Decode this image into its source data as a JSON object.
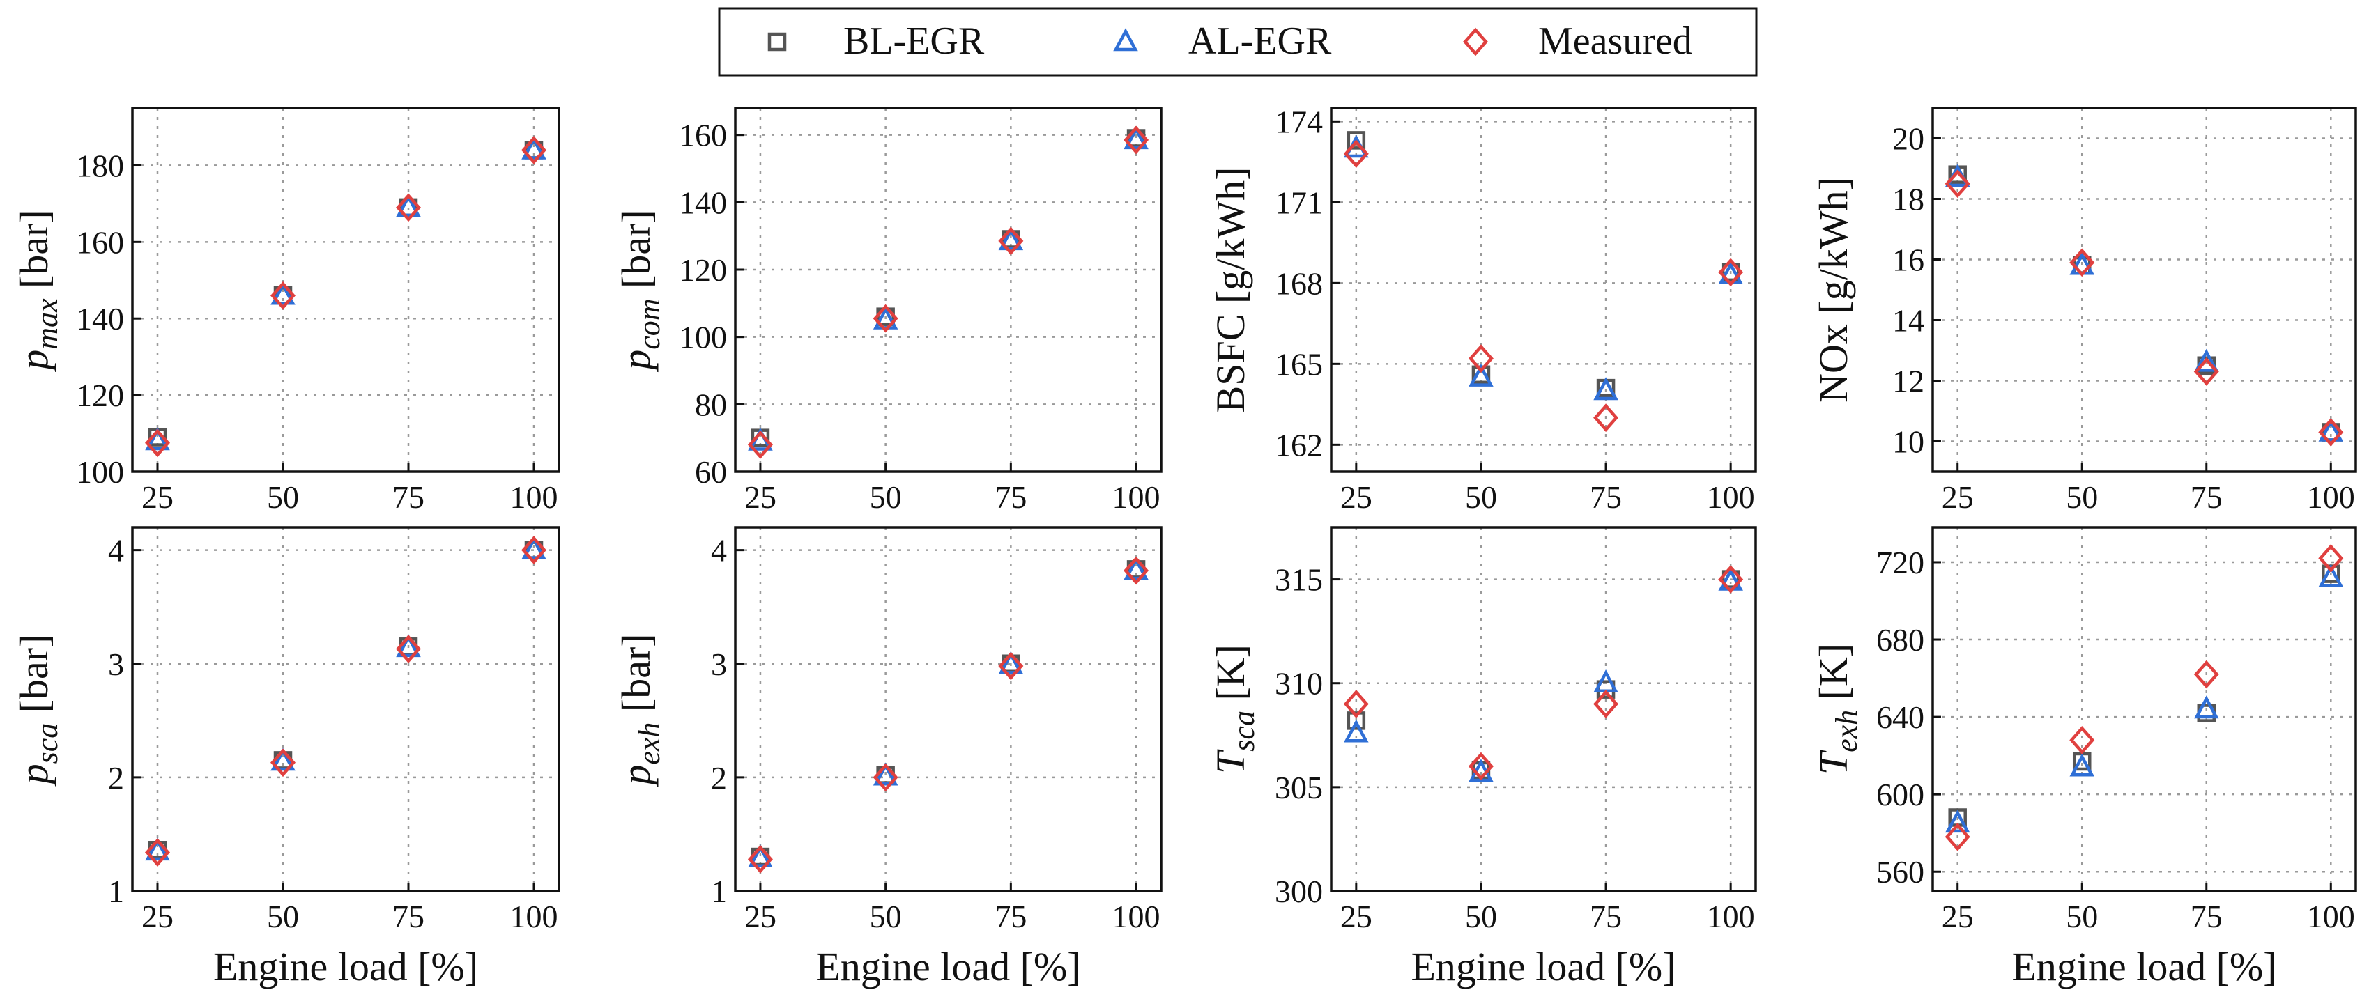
{
  "legend": [
    {
      "name": "BL-EGR",
      "marker": "square",
      "color": "#555555"
    },
    {
      "name": "AL-EGR",
      "marker": "triangle",
      "color": "#2f6fd6"
    },
    {
      "name": "Measured",
      "marker": "diamond",
      "color": "#e0403f"
    }
  ],
  "chart_data": [
    {
      "id": "pmax",
      "type": "scatter",
      "title": "",
      "ylabel_main": "p",
      "ylabel_sub": "max",
      "ylabel_unit": " [bar]",
      "xlabel": "",
      "x": [
        25,
        50,
        75,
        100
      ],
      "ylim": [
        100,
        195
      ],
      "yticks": [
        100,
        120,
        140,
        160,
        180
      ],
      "series": [
        {
          "name": "BL-EGR",
          "values": [
            109,
            146,
            169,
            184
          ]
        },
        {
          "name": "AL-EGR",
          "values": [
            108,
            146,
            169,
            184
          ]
        },
        {
          "name": "Measured",
          "values": [
            107.5,
            146,
            169,
            184
          ]
        }
      ]
    },
    {
      "id": "pcom",
      "type": "scatter",
      "title": "",
      "ylabel_main": "p",
      "ylabel_sub": "com",
      "ylabel_unit": " [bar]",
      "xlabel": "",
      "x": [
        25,
        50,
        75,
        100
      ],
      "ylim": [
        60,
        168
      ],
      "yticks": [
        60,
        80,
        100,
        120,
        140,
        160
      ],
      "series": [
        {
          "name": "BL-EGR",
          "values": [
            70,
            106,
            129,
            159
          ]
        },
        {
          "name": "AL-EGR",
          "values": [
            69,
            105,
            128.5,
            158.5
          ]
        },
        {
          "name": "Measured",
          "values": [
            68,
            105.5,
            128.5,
            158.5
          ]
        }
      ]
    },
    {
      "id": "bsfc",
      "type": "scatter",
      "title": "",
      "ylabel_main": "BSFC [g/kWh]",
      "ylabel_sub": "",
      "ylabel_unit": "",
      "xlabel": "",
      "x": [
        25,
        50,
        75,
        100
      ],
      "ylim": [
        161,
        174.5
      ],
      "yticks": [
        162,
        165,
        168,
        171,
        174
      ],
      "series": [
        {
          "name": "BL-EGR",
          "values": [
            173.3,
            164.6,
            164.1,
            168.4
          ]
        },
        {
          "name": "AL-EGR",
          "values": [
            173.0,
            164.5,
            164.0,
            168.3
          ]
        },
        {
          "name": "Measured",
          "values": [
            172.8,
            165.2,
            163.0,
            168.4
          ]
        }
      ]
    },
    {
      "id": "nox",
      "type": "scatter",
      "title": "",
      "ylabel_main": "NOx [g/kWh]",
      "ylabel_sub": "",
      "ylabel_unit": "",
      "xlabel": "",
      "x": [
        25,
        50,
        75,
        100
      ],
      "ylim": [
        9,
        21
      ],
      "yticks": [
        10,
        12,
        14,
        16,
        18,
        20
      ],
      "series": [
        {
          "name": "BL-EGR",
          "values": [
            18.8,
            15.8,
            12.5,
            10.3
          ]
        },
        {
          "name": "AL-EGR",
          "values": [
            18.7,
            15.8,
            12.6,
            10.3
          ]
        },
        {
          "name": "Measured",
          "values": [
            18.5,
            15.9,
            12.3,
            10.3
          ]
        }
      ]
    },
    {
      "id": "psca",
      "type": "scatter",
      "title": "",
      "ylabel_main": "p",
      "ylabel_sub": "sca",
      "ylabel_unit": " [bar]",
      "xlabel": "Engine load [%]",
      "x": [
        25,
        50,
        75,
        100
      ],
      "ylim": [
        1,
        4.2
      ],
      "yticks": [
        1,
        2,
        3,
        4
      ],
      "series": [
        {
          "name": "BL-EGR",
          "values": [
            1.36,
            2.15,
            3.15,
            4.0
          ]
        },
        {
          "name": "AL-EGR",
          "values": [
            1.35,
            2.14,
            3.14,
            4.0
          ]
        },
        {
          "name": "Measured",
          "values": [
            1.34,
            2.13,
            3.13,
            4.0
          ]
        }
      ]
    },
    {
      "id": "pexh",
      "type": "scatter",
      "title": "",
      "ylabel_main": "p",
      "ylabel_sub": "exh",
      "ylabel_unit": " [bar]",
      "xlabel": "Engine load [%]",
      "x": [
        25,
        50,
        75,
        100
      ],
      "ylim": [
        1,
        4.2
      ],
      "yticks": [
        1,
        2,
        3,
        4
      ],
      "series": [
        {
          "name": "BL-EGR",
          "values": [
            1.3,
            2.02,
            3.0,
            3.83
          ]
        },
        {
          "name": "AL-EGR",
          "values": [
            1.29,
            2.01,
            2.99,
            3.82
          ]
        },
        {
          "name": "Measured",
          "values": [
            1.28,
            2.0,
            2.98,
            3.82
          ]
        }
      ]
    },
    {
      "id": "tsca",
      "type": "scatter",
      "title": "",
      "ylabel_main": "T",
      "ylabel_sub": "sca",
      "ylabel_unit": " [K]",
      "xlabel": "Engine load [%]",
      "x": [
        25,
        50,
        75,
        100
      ],
      "ylim": [
        300,
        317.5
      ],
      "yticks": [
        300,
        305,
        310,
        315
      ],
      "series": [
        {
          "name": "BL-EGR",
          "values": [
            308.2,
            305.8,
            309.7,
            315.0
          ]
        },
        {
          "name": "AL-EGR",
          "values": [
            307.6,
            305.7,
            310.0,
            314.9
          ]
        },
        {
          "name": "Measured",
          "values": [
            309.0,
            306.0,
            309.0,
            315.0
          ]
        }
      ]
    },
    {
      "id": "texh",
      "type": "scatter",
      "title": "",
      "ylabel_main": "T",
      "ylabel_sub": "exh",
      "ylabel_unit": " [K]",
      "xlabel": "Engine load [%]",
      "x": [
        25,
        50,
        75,
        100
      ],
      "ylim": [
        550,
        738
      ],
      "yticks": [
        560,
        600,
        640,
        680,
        720
      ],
      "series": [
        {
          "name": "BL-EGR",
          "values": [
            588,
            617,
            642,
            714
          ]
        },
        {
          "name": "AL-EGR",
          "values": [
            585,
            614,
            644,
            712
          ]
        },
        {
          "name": "Measured",
          "values": [
            578,
            628,
            662,
            722
          ]
        }
      ]
    }
  ]
}
